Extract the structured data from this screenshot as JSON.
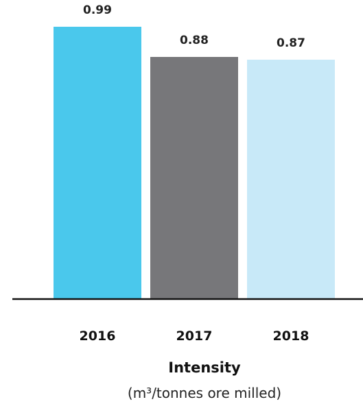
{
  "chart_data": {
    "type": "bar",
    "categories": [
      "2016",
      "2017",
      "2018"
    ],
    "values": [
      0.99,
      0.88,
      0.87
    ],
    "value_labels": [
      "0.99",
      "0.88",
      "0.87"
    ],
    "colors": [
      "#4ac8ec",
      "#77777a",
      "#c8e9f8"
    ],
    "xlabel": "Intensity",
    "xlabel_sub": "(m³/tonnes ore milled)",
    "ylim": [
      0,
      1.0
    ],
    "grid": false,
    "legend": "none"
  }
}
